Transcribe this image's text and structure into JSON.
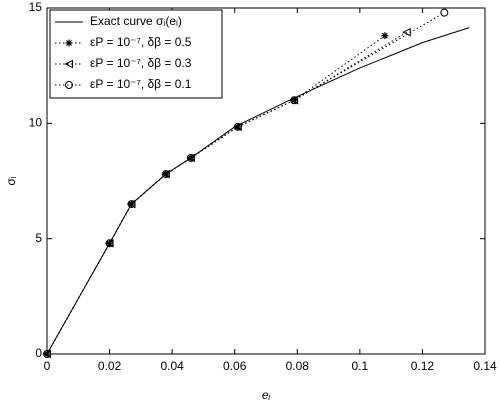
{
  "chart_data": {
    "type": "line",
    "xlabel": "eᵢ",
    "ylabel": "σᵢ",
    "xlim": [
      0,
      0.14
    ],
    "ylim": [
      0,
      15
    ],
    "xticks": [
      0,
      0.02,
      0.04,
      0.06,
      0.08,
      0.1,
      0.12,
      0.14
    ],
    "yticks": [
      0,
      5,
      10,
      15
    ],
    "grid": false,
    "legend": "upper left",
    "series": [
      {
        "name": "Exact curve σᵢ(eᵢ)",
        "color": "#000000",
        "style": "solid",
        "marker": "none",
        "x": [
          0,
          0.02,
          0.027,
          0.038,
          0.046,
          0.06,
          0.079,
          0.1,
          0.12,
          0.135
        ],
        "values": [
          0,
          4.8,
          6.5,
          7.8,
          8.5,
          9.85,
          11.1,
          12.4,
          13.5,
          14.15
        ]
      },
      {
        "name": "εP = 10⁻⁷, δβ = 0.5",
        "color": "#000000",
        "style": "dotted",
        "marker": "star",
        "x": [
          0,
          0.02,
          0.027,
          0.038,
          0.046,
          0.061,
          0.079,
          0.108
        ],
        "values": [
          0,
          4.8,
          6.5,
          7.8,
          8.5,
          9.85,
          11.0,
          13.8
        ]
      },
      {
        "name": "εP = 10⁻⁷, δβ = 0.3",
        "color": "#000000",
        "style": "dotted",
        "marker": "triangle-left",
        "x": [
          0,
          0.02,
          0.027,
          0.038,
          0.046,
          0.061,
          0.079,
          0.115
        ],
        "values": [
          0,
          4.8,
          6.5,
          7.8,
          8.5,
          9.85,
          11.0,
          13.95
        ]
      },
      {
        "name": "εP = 10⁻⁷, δβ = 0.1",
        "color": "#000000",
        "style": "dotted",
        "marker": "circle",
        "x": [
          0,
          0.02,
          0.027,
          0.038,
          0.046,
          0.061,
          0.079,
          0.127
        ],
        "values": [
          0,
          4.8,
          6.5,
          7.8,
          8.5,
          9.85,
          11.0,
          14.8
        ]
      }
    ]
  }
}
